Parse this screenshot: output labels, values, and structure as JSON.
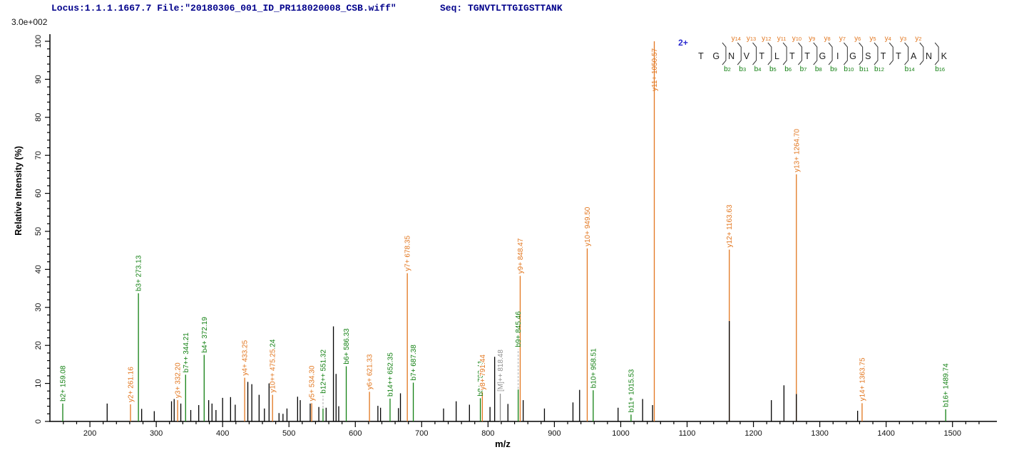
{
  "header": {
    "locus_file": "Locus:1.1.1.1667.7 File:\"20180306_001_ID_PR118020008_CSB.wiff\"",
    "seq_prefix": "Seq: ",
    "sequence": "TGNVTLTTGIGSTTANK",
    "intensity_full_scale": "3.0e+002",
    "precursor_charge": "2+"
  },
  "colors": {
    "b_ion": "#128012",
    "y_ion": "#e2761e",
    "precursor": "#909090",
    "peak_black": "#000000",
    "header_text": "#00008b",
    "charge_blue": "#2b2bd0",
    "axis": "#000000",
    "leader_gray": "#aaaaaa"
  },
  "sequence_diagram": {
    "charge_label": "2+",
    "residues": [
      "T",
      "G",
      "N",
      "V",
      "T",
      "L",
      "T",
      "T",
      "G",
      "I",
      "G",
      "S",
      "T",
      "T",
      "A",
      "N",
      "K"
    ],
    "marks": [
      {
        "gap": 2,
        "y": null,
        "b": "b2"
      },
      {
        "gap": 3,
        "y": "y14",
        "b": "b3"
      },
      {
        "gap": 4,
        "y": "y13",
        "b": "b4"
      },
      {
        "gap": 5,
        "y": "y12",
        "b": "b5"
      },
      {
        "gap": 6,
        "y": "y11",
        "b": "b6"
      },
      {
        "gap": 7,
        "y": "y10",
        "b": "b7"
      },
      {
        "gap": 8,
        "y": "y9",
        "b": "b8"
      },
      {
        "gap": 9,
        "y": "y8",
        "b": "b9"
      },
      {
        "gap": 10,
        "y": "y7",
        "b": "b10"
      },
      {
        "gap": 11,
        "y": "y6",
        "b": "b11"
      },
      {
        "gap": 12,
        "y": "y5",
        "b": "b12"
      },
      {
        "gap": 13,
        "y": "y4",
        "b": null
      },
      {
        "gap": 14,
        "y": "y3",
        "b": "b14"
      },
      {
        "gap": 15,
        "y": "y2",
        "b": null
      },
      {
        "gap": 16,
        "y": null,
        "b": "b16"
      }
    ]
  },
  "chart_data": {
    "type": "bar",
    "subtype": "ms2-centroid-spectrum",
    "xlabel": "m/z",
    "ylabel": "Relative  Intensity (%)",
    "x_range": [
      142,
      1560
    ],
    "y_range": [
      0,
      100
    ],
    "x_major_ticks": [
      200,
      300,
      400,
      500,
      600,
      700,
      800,
      900,
      1000,
      1100,
      1200,
      1300,
      1400,
      1500
    ],
    "x_minor_step": 20,
    "y_major_ticks": [
      0,
      10,
      20,
      30,
      40,
      50,
      60,
      70,
      80,
      90,
      100
    ],
    "y_minor_step": 2,
    "grid": false,
    "labeled_peaks": [
      {
        "ion": "b2+",
        "mz": "159.08",
        "pct": 4.7,
        "series": "b"
      },
      {
        "ion": "y2+",
        "mz": "261.16",
        "pct": 4.5,
        "series": "y"
      },
      {
        "ion": "b3+",
        "mz": "273.13",
        "pct": 33.7,
        "series": "b"
      },
      {
        "ion": "y3+",
        "mz": "332.20",
        "pct": 5.6,
        "series": "y"
      },
      {
        "ion": "b7++",
        "mz": "344.21",
        "pct": 12.3,
        "series": "b"
      },
      {
        "ion": "b4+",
        "mz": "372.19",
        "pct": 17.5,
        "series": "b"
      },
      {
        "ion": "y4+",
        "mz": "433.25",
        "pct": 11.5,
        "series": "y"
      },
      {
        "ion": "y10++",
        "mz": "475.25",
        "pct": 7.0,
        "series": "y",
        "suffix": ".24",
        "suffix_series": "b"
      },
      {
        "ion": "y5+",
        "mz": "534.30",
        "pct": 4.8,
        "series": "y"
      },
      {
        "ion": "b12++",
        "mz": "551.32",
        "pct": 3.4,
        "series": "b",
        "leader_to_pct": 6.8
      },
      {
        "ion": "b6+",
        "mz": "586.33",
        "pct": 14.5,
        "series": "b"
      },
      {
        "ion": "y6+",
        "mz": "621.33",
        "pct": 7.8,
        "series": "y"
      },
      {
        "ion": "b14++",
        "mz": "652.35",
        "pct": 6.0,
        "series": "b"
      },
      {
        "ion": "y7+",
        "mz": "678.35",
        "pct": 39.0,
        "series": "y"
      },
      {
        "ion": "b7+",
        "mz": "687.38",
        "pct": 10.2,
        "series": "b"
      },
      {
        "ion": "b8+",
        "mz": "788.41",
        "pct": 6.1,
        "series": "b"
      },
      {
        "ion": "y8+",
        "mz": "791.44",
        "pct": 7.7,
        "series": "y",
        "halo": true
      },
      {
        "ion": "[M]++",
        "mz": "818.48",
        "pct": 7.3,
        "series": "M"
      },
      {
        "ion": "b9+",
        "mz": "845.46",
        "pct": 8.4,
        "series": "b",
        "leader_to_pct": 19.0
      },
      {
        "ion": "y9+",
        "mz": "848.47",
        "pct": 38.3,
        "series": "y"
      },
      {
        "ion": "y10+",
        "mz": "949.50",
        "pct": 45.5,
        "series": "y"
      },
      {
        "ion": "b10+",
        "mz": "958.51",
        "pct": 8.2,
        "series": "b"
      },
      {
        "ion": "b11+",
        "mz": "1015.53",
        "pct": 1.8,
        "series": "b"
      },
      {
        "ion": "y11+",
        "mz": "1050.57",
        "pct": 100.0,
        "series": "y"
      },
      {
        "ion": "y12+",
        "mz": "1163.63",
        "pct": 45.2,
        "series": "y"
      },
      {
        "ion": "y13+",
        "mz": "1264.70",
        "pct": 65.0,
        "series": "y"
      },
      {
        "ion": "y14+",
        "mz": "1363.75",
        "pct": 4.8,
        "series": "y"
      },
      {
        "ion": "b16+",
        "mz": "1489.74",
        "pct": 3.2,
        "series": "b"
      }
    ],
    "co_located_black_peaks": [
      {
        "mz": 1163.63,
        "pct": 26.4
      },
      {
        "mz": 1264.7,
        "pct": 7.2
      }
    ],
    "unlabeled_peaks": [
      [
        226,
        4.7
      ],
      [
        278,
        3.3
      ],
      [
        297,
        2.7
      ],
      [
        323,
        5.3
      ],
      [
        327,
        5.9
      ],
      [
        337,
        4.7
      ],
      [
        352,
        3.0
      ],
      [
        364,
        4.3
      ],
      [
        379,
        5.6
      ],
      [
        384,
        4.7
      ],
      [
        390,
        3.0
      ],
      [
        400,
        6.2
      ],
      [
        412,
        6.4
      ],
      [
        419,
        4.4
      ],
      [
        438,
        10.4
      ],
      [
        444,
        9.8
      ],
      [
        455,
        7.0
      ],
      [
        463,
        3.4
      ],
      [
        470,
        10.0
      ],
      [
        485,
        2.2
      ],
      [
        491,
        2.0
      ],
      [
        497,
        3.4
      ],
      [
        513,
        6.5
      ],
      [
        517,
        5.6
      ],
      [
        532,
        4.7
      ],
      [
        545,
        3.8
      ],
      [
        556,
        3.6
      ],
      [
        567,
        25.0
      ],
      [
        571,
        12.5
      ],
      [
        575,
        4.0
      ],
      [
        634,
        4.1
      ],
      [
        638,
        3.6
      ],
      [
        665,
        3.5
      ],
      [
        668,
        7.4
      ],
      [
        733,
        3.4
      ],
      [
        752,
        5.3
      ],
      [
        772,
        4.4
      ],
      [
        803,
        3.8
      ],
      [
        810,
        17.0
      ],
      [
        830,
        4.6
      ],
      [
        853,
        5.6
      ],
      [
        885,
        3.4
      ],
      [
        928,
        5.0
      ],
      [
        938,
        8.3
      ],
      [
        996,
        3.6
      ],
      [
        1033,
        5.9
      ],
      [
        1048,
        4.3
      ],
      [
        1227,
        5.6
      ],
      [
        1246,
        9.5
      ],
      [
        1357,
        2.8
      ]
    ]
  }
}
